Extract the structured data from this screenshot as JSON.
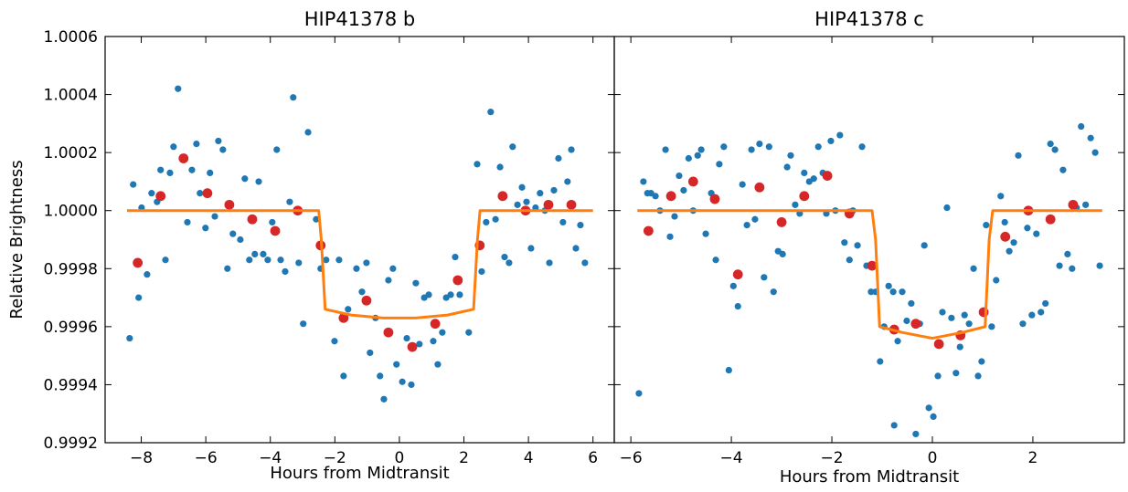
{
  "chart_data": [
    {
      "type": "scatter",
      "title": "HIP41378 b",
      "xlabel": "Hours from Midtransit",
      "ylabel": "Relative Brightness",
      "xlim": [
        -9.12,
        6.66
      ],
      "ylim": [
        0.9992,
        1.0006
      ],
      "xticks": [
        {
          "value": -8,
          "label": "−8"
        },
        {
          "value": -6,
          "label": "−6"
        },
        {
          "value": -4,
          "label": "−4"
        },
        {
          "value": -2,
          "label": "−2"
        },
        0,
        2,
        4,
        6
      ],
      "yticks": [
        0.9992,
        0.9994,
        0.9996,
        0.9998,
        {
          "value": 1,
          "label": "1.0000"
        },
        1.0002,
        1.0004,
        1.0006
      ],
      "series": [
        {
          "type": "scatter",
          "color": "#1f77b4",
          "x": [
            -8.36,
            -8.25,
            -8.08,
            -7.99,
            -7.82,
            -7.68,
            -7.51,
            -7.4,
            -7.25,
            -7.11,
            -7.0,
            -6.86,
            -6.57,
            -6.43,
            -6.29,
            -6.18,
            -6.01,
            -5.87,
            -5.72,
            -5.61,
            -5.47,
            -5.33,
            -5.16,
            -4.93,
            -4.79,
            -4.65,
            -4.48,
            -4.36,
            -4.22,
            -4.08,
            -3.94,
            -3.8,
            -3.68,
            -3.54,
            -3.4,
            -3.29,
            -3.12,
            -2.98,
            -2.83,
            -2.58,
            -2.44,
            -2.27,
            -2.01,
            -1.87,
            -1.73,
            -1.59,
            -1.33,
            -1.16,
            -1.02,
            -0.91,
            -0.74,
            -0.6,
            -0.48,
            -0.34,
            -0.2,
            -0.09,
            0.09,
            0.23,
            0.37,
            0.51,
            0.62,
            0.77,
            0.91,
            1.05,
            1.19,
            1.33,
            1.45,
            1.59,
            1.73,
            1.87,
            2.15,
            2.41,
            2.55,
            2.69,
            2.83,
            2.98,
            3.12,
            3.26,
            3.4,
            3.51,
            3.66,
            3.8,
            3.94,
            4.08,
            4.22,
            4.36,
            4.51,
            4.65,
            4.79,
            4.93,
            5.07,
            5.21,
            5.33,
            5.47,
            5.61,
            5.75
          ],
          "values": [
            0.99956,
            1.00009,
            0.9997,
            1.00001,
            0.99978,
            1.00006,
            1.00003,
            1.00014,
            0.99983,
            1.00013,
            1.00022,
            1.00042,
            0.99996,
            1.00014,
            1.00023,
            1.00006,
            0.99994,
            1.00013,
            0.99998,
            1.00024,
            1.00021,
            0.9998,
            0.99992,
            0.9999,
            1.00011,
            0.99983,
            0.99985,
            1.0001,
            0.99985,
            0.99983,
            0.99996,
            1.00021,
            0.99983,
            0.99979,
            1.00003,
            1.00039,
            0.99982,
            0.99961,
            1.00027,
            0.99997,
            0.9998,
            0.99983,
            0.99955,
            0.99983,
            0.99943,
            0.99966,
            0.9998,
            0.99972,
            0.99982,
            0.99951,
            0.99963,
            0.99943,
            0.99935,
            0.99976,
            0.9998,
            0.99947,
            0.99941,
            0.99956,
            0.9994,
            0.99975,
            0.99954,
            0.9997,
            0.99971,
            0.99955,
            0.99947,
            0.99958,
            0.9997,
            0.99971,
            0.99984,
            0.99971,
            0.99958,
            1.00016,
            0.99979,
            0.99996,
            1.00034,
            0.99997,
            1.00015,
            0.99984,
            0.99982,
            1.00022,
            1.00002,
            1.00008,
            1.00003,
            0.99987,
            1.00001,
            1.00006,
            1.0,
            0.99982,
            1.00007,
            1.00018,
            0.99996,
            1.0001,
            1.00021,
            0.99987,
            0.99995,
            0.99982
          ]
        },
        {
          "type": "scatter",
          "color": "#d62728",
          "x": [
            -8.11,
            -7.4,
            -6.69,
            -5.95,
            -5.27,
            -4.56,
            -3.85,
            -3.15,
            -2.44,
            -1.73,
            -1.02,
            -0.34,
            0.4,
            1.11,
            1.81,
            2.49,
            3.2,
            3.91,
            4.62,
            5.33
          ],
          "values": [
            0.99982,
            1.00005,
            1.00018,
            1.00006,
            1.00002,
            0.99997,
            0.99993,
            1.0,
            0.99988,
            0.99963,
            0.99969,
            0.99958,
            0.99953,
            0.99961,
            0.99976,
            0.99988,
            1.00005,
            1.0,
            1.00002,
            1.00002
          ]
        },
        {
          "type": "line",
          "color": "#ff7f0e",
          "x": [
            -8.44,
            -2.5,
            -2.42,
            -2.3,
            -1.5,
            -0.5,
            0,
            0.5,
            1.5,
            2.3,
            2.42,
            2.5,
            6
          ],
          "values": [
            1,
            1,
            0.9999,
            0.99966,
            0.99964,
            0.99963,
            0.99963,
            0.99963,
            0.99964,
            0.99966,
            0.9999,
            1,
            1
          ]
        }
      ]
    },
    {
      "type": "scatter",
      "title": "HIP41378 c",
      "xlabel": "Hours from Midtransit",
      "xlim": [
        -6.33,
        3.82
      ],
      "xticks": [
        {
          "value": -6,
          "label": "−6"
        },
        {
          "value": -4,
          "label": "−4"
        },
        {
          "value": -2,
          "label": "−2"
        },
        0,
        2
      ],
      "series": [
        {
          "type": "scatter",
          "color": "#1f77b4",
          "x": [
            -5.84,
            -5.75,
            -5.67,
            -5.6,
            -5.51,
            -5.42,
            -5.31,
            -5.22,
            -5.13,
            -5.04,
            -4.95,
            -4.85,
            -4.76,
            -4.67,
            -4.6,
            -4.51,
            -4.4,
            -4.31,
            -4.24,
            -4.15,
            -4.05,
            -3.96,
            -3.87,
            -3.78,
            -3.69,
            -3.6,
            -3.53,
            -3.44,
            -3.35,
            -3.25,
            -3.16,
            -3.07,
            -2.98,
            -2.89,
            -2.82,
            -2.73,
            -2.64,
            -2.55,
            -2.45,
            -2.36,
            -2.27,
            -2.18,
            -2.11,
            -2.02,
            -1.93,
            -1.84,
            -1.75,
            -1.65,
            -1.58,
            -1.49,
            -1.4,
            -1.31,
            -1.22,
            -1.13,
            -1.04,
            -0.96,
            -0.87,
            -0.78,
            -0.76,
            -0.69,
            -0.6,
            -0.51,
            -0.42,
            -0.33,
            -0.25,
            -0.16,
            -0.07,
            0.02,
            0.11,
            0.2,
            0.29,
            0.38,
            0.47,
            0.55,
            0.64,
            0.73,
            0.82,
            0.91,
            0.98,
            1.07,
            1.18,
            1.27,
            1.36,
            1.44,
            1.53,
            1.62,
            1.71,
            1.8,
            1.89,
            1.98,
            2.07,
            2.16,
            2.25,
            2.35,
            2.44,
            2.53,
            2.6,
            2.69,
            2.78,
            2.87,
            2.96,
            3.05,
            3.15,
            3.24,
            3.33
          ],
          "values": [
            0.99937,
            1.0001,
            1.00006,
            1.00006,
            1.00005,
            1.0,
            1.00021,
            0.99991,
            0.99998,
            1.00012,
            1.00007,
            1.00018,
            1.0,
            1.00019,
            1.00021,
            0.99992,
            1.00006,
            0.99983,
            1.00016,
            1.00022,
            0.99945,
            0.99974,
            0.99967,
            1.00009,
            0.99995,
            1.00021,
            0.99997,
            1.00023,
            0.99977,
            1.00022,
            0.99972,
            0.99986,
            0.99985,
            1.00015,
            1.00019,
            1.00002,
            0.99999,
            1.00013,
            1.0001,
            1.00011,
            1.00022,
            1.00013,
            0.99999,
            1.00024,
            1.0,
            1.00026,
            0.99989,
            0.99983,
            1.0,
            0.99988,
            1.00022,
            0.99981,
            0.99972,
            0.99972,
            0.99948,
            0.9996,
            0.99974,
            0.99972,
            0.99926,
            0.99955,
            0.99972,
            0.99962,
            0.99968,
            0.99923,
            0.99961,
            0.99988,
            0.99932,
            0.99929,
            0.99943,
            0.99965,
            1.00001,
            0.99963,
            0.99944,
            0.99953,
            0.99964,
            0.99961,
            0.9998,
            0.99943,
            0.99948,
            0.99995,
            0.9996,
            0.99976,
            1.00005,
            0.99996,
            0.99986,
            0.99989,
            1.00019,
            0.99961,
            0.99994,
            0.99964,
            0.99992,
            0.99965,
            0.99968,
            1.00023,
            1.00021,
            0.99981,
            1.00014,
            0.99985,
            0.9998,
            1.00001,
            1.00029,
            1.00002,
            1.00025,
            1.0002,
            0.99981
          ]
        },
        {
          "type": "scatter",
          "color": "#d62728",
          "x": [
            -5.65,
            -5.2,
            -4.76,
            -4.33,
            -3.87,
            -3.44,
            -3.0,
            -2.55,
            -2.09,
            -1.65,
            -1.2,
            -0.76,
            -0.33,
            0.13,
            0.56,
            1.02,
            1.45,
            1.91,
            2.35,
            2.8
          ],
          "values": [
            0.99993,
            1.00005,
            1.0001,
            1.00004,
            0.99978,
            1.00008,
            0.99996,
            1.00005,
            1.00012,
            0.99999,
            0.99981,
            0.99959,
            0.99961,
            0.99954,
            0.99957,
            0.99965,
            0.99991,
            1.0,
            0.99997,
            1.00002
          ]
        },
        {
          "type": "line",
          "color": "#ff7f0e",
          "x": [
            -5.87,
            -1.2,
            -1.13,
            -1.05,
            -0.6,
            0,
            0.6,
            1.05,
            1.13,
            1.2,
            3.38
          ],
          "values": [
            1,
            1,
            0.9999,
            0.9996,
            0.99958,
            0.99956,
            0.99958,
            0.9996,
            0.9999,
            1,
            1
          ]
        }
      ]
    }
  ]
}
